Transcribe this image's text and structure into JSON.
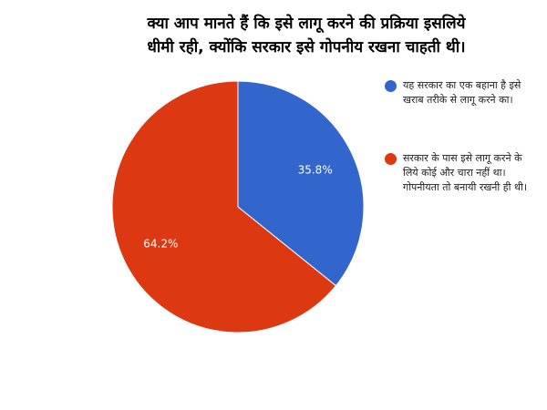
{
  "chart_data": {
    "type": "pie",
    "title_lines": [
      "क्या आप मानते हैं कि इसे लागू करने की प्रक्रिया इसलिये",
      "धीमी रही, क्योंकि सरकार इसे गोपनीय रखना चाहती थी।"
    ],
    "slices": [
      {
        "label": "यह सरकार का एक बहाना है इसे खराब तरीके से लागू करने का।",
        "value": 35.8,
        "display": "35.8%",
        "color": "#3366cc"
      },
      {
        "label": "सरकार के पास इसे लागू करने के लिये कोई और चारा नहीं था। गोपनीयता तो बनायी रखनी ही थी।",
        "value": 64.2,
        "display": "64.2%",
        "color": "#dc3912"
      }
    ],
    "legend_position": "right",
    "start_angle_deg": 0,
    "direction": "clockwise"
  }
}
